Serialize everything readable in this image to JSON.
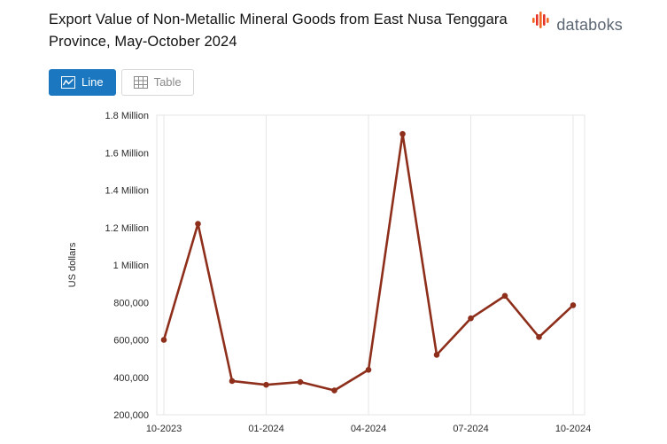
{
  "header": {
    "title": "Export Value of Non-Metallic Mineral Goods from East Nusa Tenggara Province, May-October 2024",
    "logo_text": "databoks"
  },
  "toolbar": {
    "line_label": "Line",
    "table_label": "Table"
  },
  "colors": {
    "accent_blue": "#1b78c0",
    "line": "#8e2f1c",
    "grid": "#e6e6e6",
    "logo_orange": "#f26822",
    "logo_red": "#e63329"
  },
  "chart_data": {
    "type": "line",
    "title": "Export Value of Non-Metallic Mineral Goods from East Nusa Tenggara Province, May-October 2024",
    "x": [
      "10-2023",
      "11-2023",
      "12-2023",
      "01-2024",
      "02-2024",
      "03-2024",
      "04-2024",
      "05-2024",
      "06-2024",
      "07-2024",
      "08-2024",
      "09-2024",
      "10-2024"
    ],
    "values": [
      600000,
      1220000,
      380000,
      360000,
      375000,
      330000,
      440000,
      1700000,
      520000,
      715000,
      835000,
      615000,
      785000
    ],
    "xlabel": "",
    "ylabel": "US dollars",
    "ylim": [
      200000,
      1800000
    ],
    "yticks": [
      200000,
      400000,
      600000,
      800000,
      1000000,
      1200000,
      1400000,
      1600000,
      1800000
    ],
    "ytick_labels": [
      "200,000",
      "400,000",
      "600,000",
      "800,000",
      "1 Million",
      "1.2 Million",
      "1.4 Million",
      "1.6 Million",
      "1.8 Million"
    ],
    "xtick_indices": [
      0,
      3,
      6,
      9,
      12
    ],
    "xtick_labels": [
      "10-2023",
      "01-2024",
      "04-2024",
      "07-2024",
      "10-2024"
    ],
    "grid": "vertical",
    "legend": "none",
    "line_color": "#8e2f1c",
    "grid_color": "#e6e6e6"
  }
}
